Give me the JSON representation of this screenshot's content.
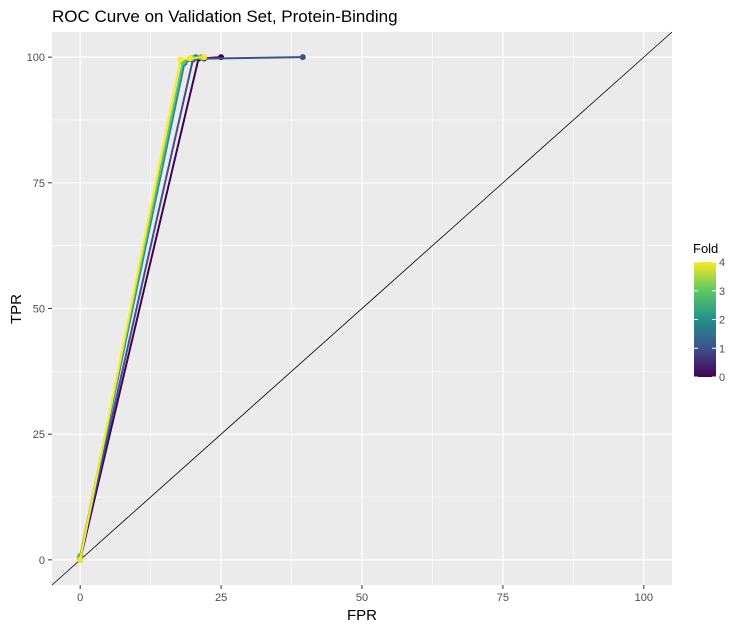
{
  "chart_data": {
    "type": "line",
    "title": "ROC Curve on Validation Set, Protein-Binding",
    "xlabel": "FPR",
    "ylabel": "TPR",
    "xlim": [
      -5,
      105
    ],
    "ylim": [
      -5,
      105
    ],
    "xticks": [
      0,
      25,
      50,
      75,
      100
    ],
    "yticks": [
      0,
      25,
      50,
      75,
      100
    ],
    "xtick_labels": [
      "0",
      "25",
      "50",
      "75",
      "100"
    ],
    "ytick_labels": [
      "0",
      "25",
      "50",
      "75",
      "100"
    ],
    "grid": true,
    "background": "#ebebeb",
    "reference_line": {
      "x": [
        -5,
        105
      ],
      "y": [
        -5,
        105
      ],
      "color": "#000000"
    },
    "legend": {
      "title": "Fold",
      "type": "colorbar",
      "position": "right",
      "range": [
        0,
        4
      ],
      "ticks": [
        "0",
        "1",
        "2",
        "3",
        "4"
      ],
      "colors": [
        "#440154",
        "#3b528b",
        "#21908c",
        "#5dc863",
        "#fde725"
      ]
    },
    "series": [
      {
        "fold": 0,
        "color": "#440154",
        "x": [
          0,
          21.0,
          25.0
        ],
        "y": [
          0,
          99.7,
          100
        ]
      },
      {
        "fold": 1,
        "color": "#3b528b",
        "x": [
          0,
          20.0,
          22.0,
          39.5
        ],
        "y": [
          0.5,
          99.5,
          99.7,
          100
        ]
      },
      {
        "fold": 2,
        "color": "#21908c",
        "x": [
          0,
          18.5,
          20.5
        ],
        "y": [
          0.6,
          98.8,
          100
        ]
      },
      {
        "fold": 3,
        "color": "#5dc863",
        "x": [
          0,
          18.2,
          19.8,
          21.5
        ],
        "y": [
          0.8,
          99.0,
          99.8,
          100
        ]
      },
      {
        "fold": 4,
        "color": "#fde725",
        "x": [
          0,
          17.8,
          19.5,
          22.0
        ],
        "y": [
          0,
          99.5,
          99.8,
          100
        ]
      }
    ]
  }
}
